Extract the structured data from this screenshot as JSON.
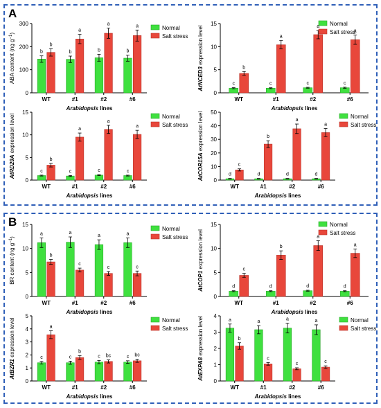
{
  "figure": {
    "panel_a_label": "A",
    "panel_b_label": "B",
    "colors": {
      "normal": "#3fe03f",
      "salt": "#e8473b",
      "border": "#2f5fb8"
    },
    "legend": {
      "normal": "Normal",
      "salt": "Salt stress"
    }
  },
  "chart_data": [
    {
      "type": "bar",
      "ylabel": "ABA content (ng g^-1)",
      "ylabel_parts": [
        "ABA content (ng g",
        "−1",
        ")"
      ],
      "xlabel_italic": "Arabidopsis",
      "xlabel_rest": " lines",
      "categories": [
        "WT",
        "#1",
        "#2",
        "#6"
      ],
      "ylim": [
        0,
        300
      ],
      "yticks": [
        0,
        100,
        200,
        300
      ],
      "series": [
        {
          "name": "Normal",
          "values": [
            146,
            145,
            152,
            150
          ],
          "errors": [
            14,
            14,
            15,
            13
          ],
          "letters": [
            "b",
            "b",
            "b",
            "b"
          ]
        },
        {
          "name": "Salt stress",
          "values": [
            175,
            233,
            258,
            248
          ],
          "errors": [
            16,
            20,
            22,
            24
          ],
          "letters": [
            "b",
            "a",
            "a",
            "a"
          ]
        }
      ]
    },
    {
      "type": "bar",
      "ylabel_italic": "AtNCED3",
      "ylabel_rest": " expression level",
      "xlabel_italic": "Arabidopsis",
      "xlabel_rest": " lines",
      "categories": [
        "WT",
        "#1",
        "#2",
        "#6"
      ],
      "ylim": [
        0,
        15
      ],
      "yticks": [
        0,
        5,
        10,
        15
      ],
      "series": [
        {
          "name": "Normal",
          "values": [
            1.0,
            1.0,
            1.1,
            1.1
          ],
          "errors": [
            0.12,
            0.1,
            0.1,
            0.12
          ],
          "letters": [
            "c",
            "c",
            "c",
            "c"
          ]
        },
        {
          "name": "Salt stress",
          "values": [
            4.2,
            10.4,
            12.6,
            11.5
          ],
          "errors": [
            0.4,
            0.9,
            0.9,
            1.0
          ],
          "letters": [
            "b",
            "a",
            "a",
            "a"
          ]
        }
      ]
    },
    {
      "type": "bar",
      "ylabel_italic": "AtRD29A",
      "ylabel_rest": " expression level",
      "xlabel_italic": "Arabidopsis",
      "xlabel_rest": " lines",
      "categories": [
        "WT",
        "#1",
        "#2",
        "#6"
      ],
      "ylim": [
        0,
        15
      ],
      "yticks": [
        0,
        5,
        10,
        15
      ],
      "series": [
        {
          "name": "Normal",
          "values": [
            1.0,
            0.9,
            1.1,
            1.0
          ],
          "errors": [
            0.1,
            0.1,
            0.1,
            0.1
          ],
          "letters": [
            "c",
            "c",
            "c",
            "c"
          ]
        },
        {
          "name": "Salt stress",
          "values": [
            3.3,
            9.5,
            11.2,
            10.1
          ],
          "errors": [
            0.4,
            0.9,
            0.9,
            0.9
          ],
          "letters": [
            "b",
            "a",
            "a",
            "a"
          ]
        }
      ]
    },
    {
      "type": "bar",
      "ylabel_italic": "AtCOR15A",
      "ylabel_rest": " expression level",
      "xlabel_italic": "Arabidopsis",
      "xlabel_rest": " lines",
      "categories": [
        "WT",
        "#1",
        "#2",
        "#6"
      ],
      "ylim": [
        0,
        50
      ],
      "yticks": [
        0,
        10,
        20,
        30,
        40,
        50
      ],
      "series": [
        {
          "name": "Normal",
          "values": [
            1.0,
            1.0,
            1.0,
            1.0
          ],
          "errors": [
            0.2,
            0.2,
            0.2,
            0.2
          ],
          "letters": [
            "d",
            "d",
            "d",
            "d"
          ]
        },
        {
          "name": "Salt stress",
          "values": [
            7.5,
            26.5,
            37.8,
            35.0
          ],
          "errors": [
            0.8,
            2.5,
            3.5,
            3.0
          ],
          "letters": [
            "c",
            "b",
            "a",
            "a"
          ]
        }
      ]
    },
    {
      "type": "bar",
      "ylabel": "BR content (ng g^-1)",
      "ylabel_parts": [
        "BR content (ng g",
        "−1",
        ")"
      ],
      "xlabel_italic": "Arabidopsis",
      "xlabel_rest": " lines",
      "categories": [
        "WT",
        "#1",
        "#2",
        "#6"
      ],
      "ylim": [
        0,
        15
      ],
      "yticks": [
        0,
        5,
        10,
        15
      ],
      "series": [
        {
          "name": "Normal",
          "values": [
            11.2,
            11.3,
            10.8,
            11.2
          ],
          "errors": [
            1.0,
            1.1,
            1.0,
            1.0
          ],
          "letters": [
            "a",
            "a",
            "a",
            "a"
          ]
        },
        {
          "name": "Salt stress",
          "values": [
            7.2,
            5.5,
            4.8,
            4.8
          ],
          "errors": [
            0.5,
            0.4,
            0.4,
            0.5
          ],
          "letters": [
            "b",
            "c",
            "c",
            "c"
          ]
        }
      ]
    },
    {
      "type": "bar",
      "ylabel_italic": "AtCOP1",
      "ylabel_rest": " expression level",
      "xlabel_italic": "Arabidopsis",
      "xlabel_rest": " lines",
      "categories": [
        "WT",
        "#1",
        "#2",
        "#6"
      ],
      "ylim": [
        0,
        15
      ],
      "yticks": [
        0,
        5,
        10,
        15
      ],
      "series": [
        {
          "name": "Normal",
          "values": [
            1.1,
            1.1,
            1.2,
            1.1
          ],
          "errors": [
            0.1,
            0.1,
            0.1,
            0.1
          ],
          "letters": [
            "d",
            "d",
            "d",
            "d"
          ]
        },
        {
          "name": "Salt stress",
          "values": [
            4.4,
            8.6,
            10.6,
            9.0
          ],
          "errors": [
            0.4,
            0.9,
            1.0,
            0.9
          ],
          "letters": [
            "c",
            "b",
            "a",
            "a"
          ]
        }
      ]
    },
    {
      "type": "bar",
      "ylabel_italic": "AtBZR1",
      "ylabel_rest": " expression level",
      "xlabel_italic": "Arabidopsis",
      "xlabel_rest": " lines",
      "categories": [
        "WT",
        "#1",
        "#2",
        "#6"
      ],
      "ylim": [
        0,
        5
      ],
      "yticks": [
        0,
        1,
        2,
        3,
        4,
        5
      ],
      "series": [
        {
          "name": "Normal",
          "values": [
            1.4,
            1.4,
            1.45,
            1.45
          ],
          "errors": [
            0.1,
            0.12,
            0.12,
            0.1
          ],
          "letters": [
            "c",
            "c",
            "c",
            "c"
          ]
        },
        {
          "name": "Salt stress",
          "values": [
            3.55,
            1.8,
            1.5,
            1.55
          ],
          "errors": [
            0.3,
            0.15,
            0.12,
            0.12
          ],
          "letters": [
            "a",
            "b",
            "bc",
            "bc"
          ]
        }
      ]
    },
    {
      "type": "bar",
      "ylabel_italic": "AtEXPA8",
      "ylabel_rest": " expression level",
      "xlabel_italic": "Arabidopsis",
      "xlabel_rest": " lines",
      "categories": [
        "WT",
        "#1",
        "#2",
        "#6"
      ],
      "ylim": [
        0,
        4
      ],
      "yticks": [
        0,
        1,
        2,
        3,
        4
      ],
      "series": [
        {
          "name": "Normal",
          "values": [
            3.25,
            3.15,
            3.25,
            3.15
          ],
          "errors": [
            0.25,
            0.25,
            0.3,
            0.3
          ],
          "letters": [
            "a",
            "a",
            "a",
            "a"
          ]
        },
        {
          "name": "Salt stress",
          "values": [
            2.15,
            1.05,
            0.75,
            0.85
          ],
          "errors": [
            0.2,
            0.08,
            0.06,
            0.08
          ],
          "letters": [
            "b",
            "c",
            "c",
            "c"
          ]
        }
      ]
    }
  ]
}
